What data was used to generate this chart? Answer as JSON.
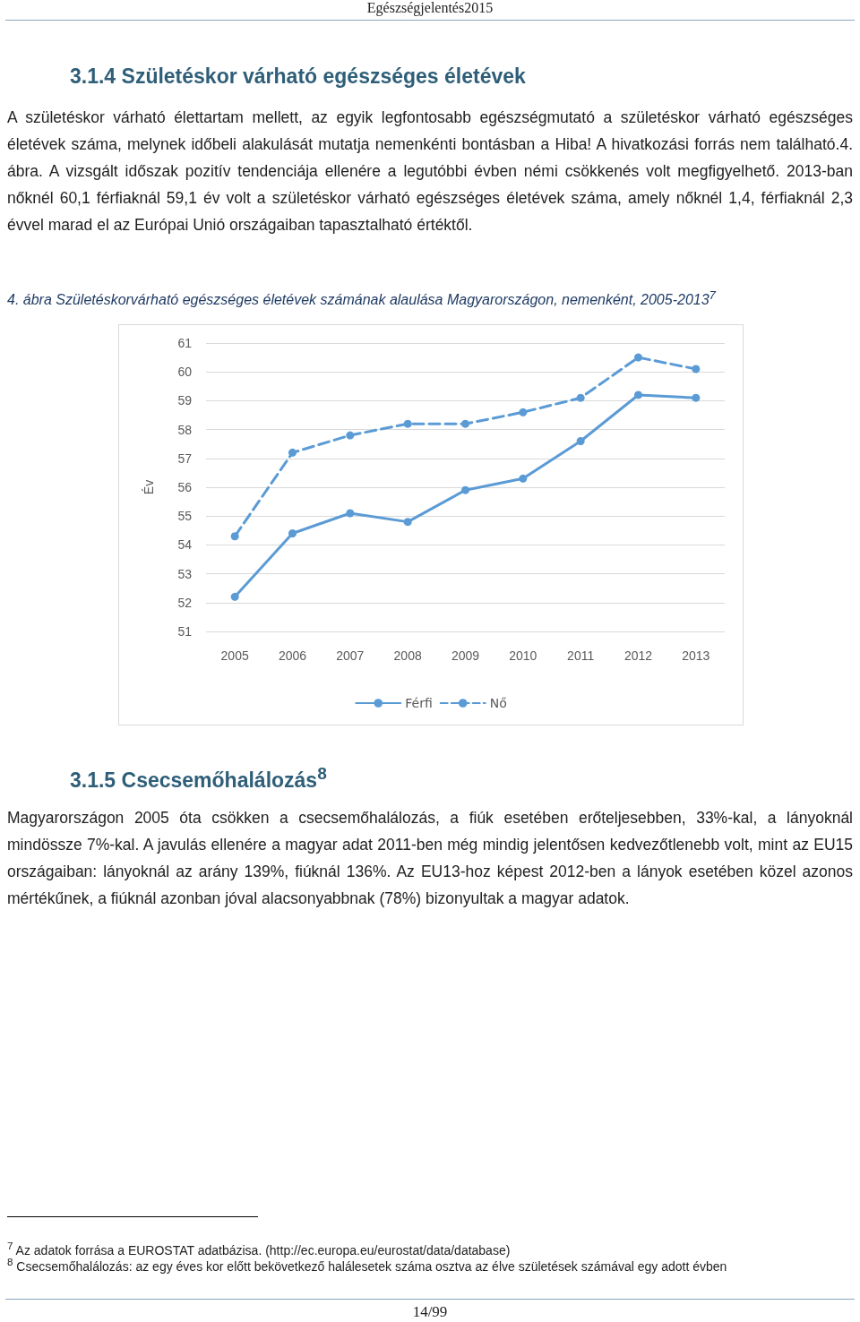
{
  "chart_data": {
    "type": "line",
    "title": "4. ábra Születéskorvárható egészséges életévek számának alaulása Magyarországon, nemenként, 2005-2013$^{7}$",
    "ylabel": "Év",
    "categories": [
      "2005",
      "2006",
      "2007",
      "2008",
      "2009",
      "2010",
      "2011",
      "2012",
      "2013"
    ],
    "series": [
      {
        "name": "Férfi",
        "color": "#5b9bd5",
        "line_style": "solid",
        "values": [
          52.2,
          54.4,
          55.1,
          54.8,
          55.9,
          56.3,
          57.6,
          59.2,
          59.1
        ]
      },
      {
        "name": "Nő",
        "color": "#5b9bd5",
        "line_style": "dashed",
        "values": [
          54.3,
          57.2,
          57.8,
          58.2,
          58.2,
          58.6,
          59.1,
          60.5,
          60.1
        ]
      }
    ],
    "ylim": [
      51,
      61
    ],
    "yticks": [
      51,
      52,
      53,
      54,
      55,
      56,
      57,
      58,
      59,
      60,
      61
    ],
    "grid": "y",
    "legend": "bottom",
    "marker": "circle",
    "annotations": [
      "Egészségjelentés2015",
      "3.1.4 Születéskor várható egészséges életévek",
      "A születéskor várható élettartam mellett, az egyik legfontosabb egészségmutató a születéskor várható egészséges életévek száma, melynek időbeli alakulását mutatja nemenkénti bontásban a Hiba! A hivatkozási forrás nem található.4. ábra. A vizsgált időszak pozitív tendenciája ellenére a legutóbbi évben némi csökkenés volt megfigyelhető. 2013-ban nőknél 60,1 férfiaknál 59,1 év volt a születéskor várható egészséges életévek száma, amely nőknél 1,4, férfiaknál 2,3 évvel marad el az Európai Unió országaiban tapasztalható értéktől.",
      "3.1.5 Csecsemőhalálozás$^{8}$",
      "Magyarországon 2005 óta csökken a csecsemőhalálozás, a fiúk esetében erőteljesebben, 33%-kal, a lányoknál mindössze 7%-kal. A javulás ellenére a magyar adat 2011-ben még mindig jelentősen kedvezőtlenebb volt, mint az EU15 országaiban: lányoknál az arány 139%, fiúknál 136%. Az EU13-hoz képest 2012-ben a lányok esetében közel azonos mértékűnek, a fiúknál azonban jóval alacsonyabbnak (78%) bizonyultak a magyar adatok.",
      "$^{7}$ Az adatok forrása a EUROSTAT adatbázisa. (http://ec.europa.eu/eurostat/data/database)",
      "$^{8}$ Csecsemőhalálozás: az egy éves kor előtt bekövetkező halálesetek száma osztva az élve születések számával egy adott évben",
      "14/99"
    ]
  }
}
